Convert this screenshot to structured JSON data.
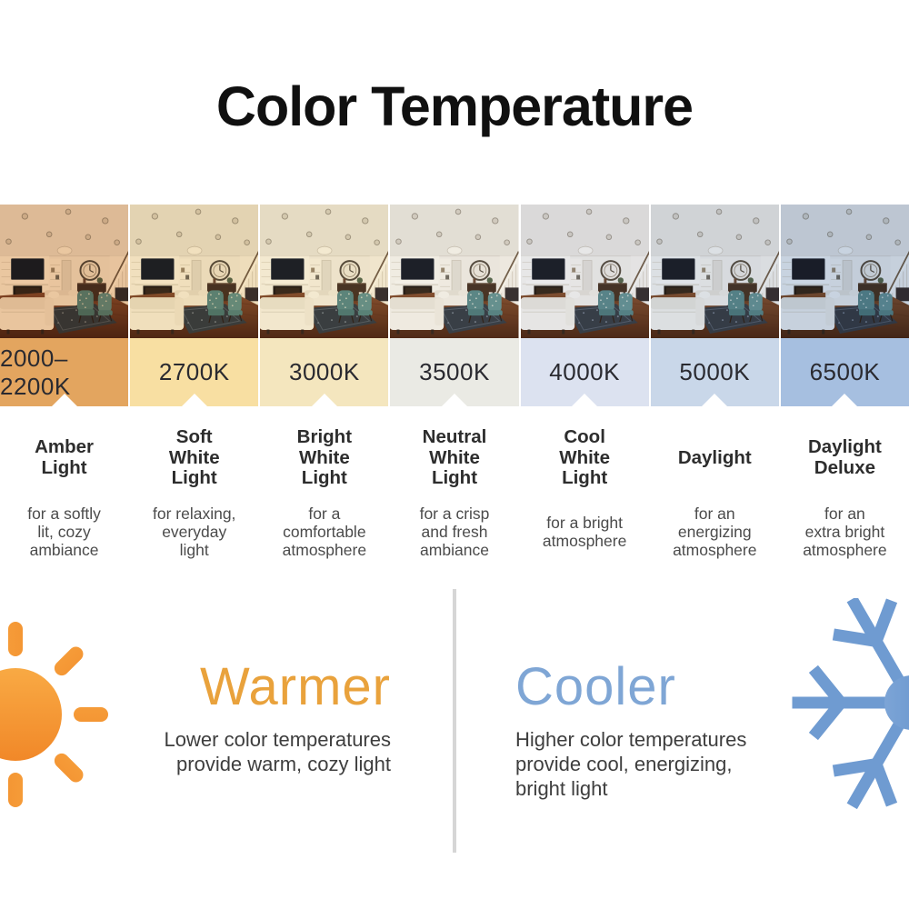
{
  "title": "Color Temperature",
  "panels": [
    {
      "kelvin": "2000–2200K",
      "band_color": "#E3A55F",
      "tint": "#E9B277",
      "tint_opacity": 0.62,
      "name": [
        "Amber",
        "Light"
      ],
      "desc": [
        "for a softly",
        "lit, cozy",
        "ambiance"
      ]
    },
    {
      "kelvin": "2700K",
      "band_color": "#F8DFA2",
      "tint": "#F3D9A0",
      "tint_opacity": 0.55,
      "name": [
        "Soft",
        "White",
        "Light"
      ],
      "desc": [
        "for relaxing,",
        "everyday",
        "light"
      ]
    },
    {
      "kelvin": "3000K",
      "band_color": "#F4E6BE",
      "tint": "#F6E7BE",
      "tint_opacity": 0.5,
      "name": [
        "Bright",
        "White",
        "Light"
      ],
      "desc": [
        "for a",
        "comfortable",
        "atmosphere"
      ]
    },
    {
      "kelvin": "3500K",
      "band_color": "#EAEAE4",
      "tint": "#EFEDE6",
      "tint_opacity": 0.5,
      "name": [
        "Neutral",
        "White",
        "Light"
      ],
      "desc": [
        "for a crisp",
        "and fresh",
        "ambiance"
      ]
    },
    {
      "kelvin": "4000K",
      "band_color": "#DCE2F0",
      "tint": "#DEE4F0",
      "tint_opacity": 0.5,
      "name": [
        "Cool",
        "White",
        "Light"
      ],
      "desc": [
        "for a bright",
        "atmosphere"
      ]
    },
    {
      "kelvin": "5000K",
      "band_color": "#C9D7E9",
      "tint": "#CCD9EB",
      "tint_opacity": 0.55,
      "name": [
        "Daylight"
      ],
      "desc": [
        "for an",
        "energizing",
        "atmosphere"
      ]
    },
    {
      "kelvin": "6500K",
      "band_color": "#A6BFE0",
      "tint": "#AEC4E4",
      "tint_opacity": 0.6,
      "name": [
        "Daylight",
        "Deluxe"
      ],
      "desc": [
        "for an",
        "extra bright",
        "atmosphere"
      ]
    }
  ],
  "warmer": {
    "heading": "Warmer",
    "color": "#E9A23C",
    "icon": "sun-icon",
    "desc": [
      "Lower color temperatures",
      "provide warm, cozy light"
    ]
  },
  "cooler": {
    "heading": "Cooler",
    "color": "#7FA6D5",
    "icon": "snowflake-icon",
    "desc": [
      "Higher color temperatures",
      "provide cool, energizing,",
      "bright light"
    ]
  },
  "colors": {
    "divider": "#D6D6D6",
    "kelvin_text": "#2A2A30",
    "name_text": "#2D2D2D",
    "desc_text": "#4B4B4B",
    "bottom_text": "#3E3E3E",
    "sun_gradient": [
      "#F9AB45",
      "#EE7B1E"
    ],
    "snowflake_gradient": [
      "#A9C4E8",
      "#6F9BD1"
    ]
  }
}
